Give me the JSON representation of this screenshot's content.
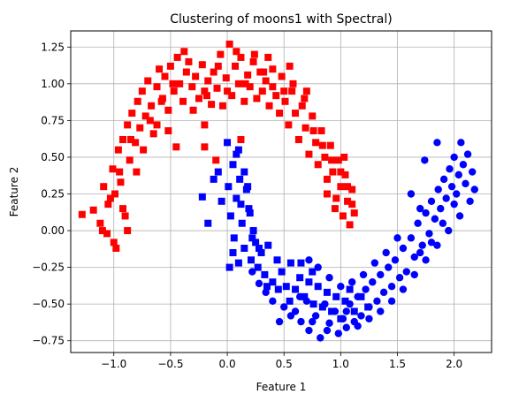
{
  "chart_data": {
    "type": "scatter",
    "title": "Clustering of moons1 with Spectral)",
    "xlabel": "Feature 1",
    "ylabel": "Feature 2",
    "xlim": [
      -1.38,
      2.33
    ],
    "ylim": [
      -0.83,
      1.36
    ],
    "xticks": [
      -1.0,
      -0.5,
      0.0,
      0.5,
      1.0,
      1.5,
      2.0
    ],
    "yticks": [
      -0.75,
      -0.5,
      -0.25,
      0.0,
      0.25,
      0.5,
      0.75,
      1.0,
      1.25
    ],
    "xtick_labels": [
      "−1.0",
      "−0.5",
      "0.0",
      "0.5",
      "1.0",
      "1.5",
      "2.0"
    ],
    "ytick_labels": [
      "−0.75",
      "−0.50",
      "−0.25",
      "0.00",
      "0.25",
      "0.50",
      "0.75",
      "1.00",
      "1.25"
    ],
    "grid": true,
    "series": [
      {
        "marker": "square",
        "color": "#ff0000",
        "points": [
          [
            -1.28,
            0.11
          ],
          [
            -1.18,
            0.14
          ],
          [
            -1.12,
            0.05
          ],
          [
            -1.09,
            0.3
          ],
          [
            -1.06,
            -0.02
          ],
          [
            -1.03,
            0.22
          ],
          [
            -1.01,
            0.42
          ],
          [
            -0.98,
            -0.12
          ],
          [
            -0.96,
            0.55
          ],
          [
            -0.94,
            0.33
          ],
          [
            -0.92,
            0.62
          ],
          [
            -0.9,
            0.1
          ],
          [
            -0.88,
            0.72
          ],
          [
            -0.86,
            0.48
          ],
          [
            -0.84,
            0.8
          ],
          [
            -0.81,
            0.6
          ],
          [
            -0.79,
            0.88
          ],
          [
            -0.77,
            0.7
          ],
          [
            -0.75,
            0.95
          ],
          [
            -0.72,
            0.78
          ],
          [
            -0.7,
            1.02
          ],
          [
            -0.67,
            0.85
          ],
          [
            -0.65,
            0.66
          ],
          [
            -0.62,
            0.98
          ],
          [
            -0.6,
            1.1
          ],
          [
            -0.57,
            0.9
          ],
          [
            -0.55,
            1.05
          ],
          [
            -0.52,
            0.82
          ],
          [
            -0.5,
            1.12
          ],
          [
            -0.47,
            0.95
          ],
          [
            -0.44,
            1.18
          ],
          [
            -0.42,
            1.0
          ],
          [
            -0.39,
            0.88
          ],
          [
            -0.36,
            1.08
          ],
          [
            -0.34,
            1.15
          ],
          [
            -0.31,
            0.98
          ],
          [
            -0.28,
            1.05
          ],
          [
            -0.25,
            0.9
          ],
          [
            -0.22,
            1.13
          ],
          [
            -0.2,
            0.95
          ],
          [
            -0.17,
            1.02
          ],
          [
            -0.14,
            0.86
          ],
          [
            -0.12,
            1.08
          ],
          [
            -0.09,
            0.97
          ],
          [
            -0.06,
            1.2
          ],
          [
            -0.04,
            0.85
          ],
          [
            -0.01,
            1.04
          ],
          [
            0.02,
            1.27
          ],
          [
            0.04,
            0.92
          ],
          [
            0.07,
            1.12
          ],
          [
            0.1,
            1.0
          ],
          [
            0.12,
            1.18
          ],
          [
            0.15,
            0.88
          ],
          [
            0.18,
            1.06
          ],
          [
            0.2,
            0.98
          ],
          [
            0.23,
            1.15
          ],
          [
            0.26,
            0.9
          ],
          [
            0.29,
            1.08
          ],
          [
            0.31,
            0.95
          ],
          [
            0.34,
            1.02
          ],
          [
            0.37,
            0.85
          ],
          [
            0.4,
            1.1
          ],
          [
            0.43,
            0.92
          ],
          [
            0.46,
            0.8
          ],
          [
            0.48,
            1.05
          ],
          [
            0.51,
            0.88
          ],
          [
            0.54,
            0.72
          ],
          [
            0.57,
            0.95
          ],
          [
            0.6,
            0.8
          ],
          [
            0.63,
            0.62
          ],
          [
            0.66,
            0.85
          ],
          [
            0.69,
            0.7
          ],
          [
            0.72,
            0.52
          ],
          [
            0.75,
            0.78
          ],
          [
            0.78,
            0.6
          ],
          [
            0.8,
            0.45
          ],
          [
            0.83,
            0.68
          ],
          [
            0.86,
            0.5
          ],
          [
            0.88,
            0.35
          ],
          [
            0.91,
            0.58
          ],
          [
            0.93,
            0.4
          ],
          [
            0.96,
            0.22
          ],
          [
            0.98,
            0.48
          ],
          [
            1.0,
            0.3
          ],
          [
            1.02,
            0.1
          ],
          [
            1.04,
            0.38
          ],
          [
            1.06,
            0.2
          ],
          [
            1.08,
            0.04
          ],
          [
            1.1,
            0.28
          ],
          [
            1.12,
            0.12
          ],
          [
            -1.05,
            0.18
          ],
          [
            -0.99,
            0.25
          ],
          [
            -0.95,
            0.4
          ],
          [
            -0.85,
            0.62
          ],
          [
            -0.8,
            0.4
          ],
          [
            -0.74,
            0.55
          ],
          [
            -0.68,
            0.75
          ],
          [
            -0.58,
            0.88
          ],
          [
            -0.48,
            1.0
          ],
          [
            -0.38,
            1.22
          ],
          [
            -0.3,
            0.82
          ],
          [
            -0.18,
            0.92
          ],
          [
            -0.08,
            1.12
          ],
          [
            0.0,
            0.95
          ],
          [
            0.08,
            1.22
          ],
          [
            0.16,
            1.0
          ],
          [
            0.24,
            1.2
          ],
          [
            0.32,
            1.08
          ],
          [
            0.4,
            0.98
          ],
          [
            0.5,
            0.95
          ],
          [
            0.58,
            1.0
          ],
          [
            0.68,
            0.9
          ],
          [
            0.76,
            0.68
          ],
          [
            0.84,
            0.58
          ],
          [
            0.92,
            0.48
          ],
          [
            1.0,
            0.4
          ],
          [
            1.06,
            0.3
          ],
          [
            1.1,
            0.18
          ],
          [
            -0.45,
            0.57
          ],
          [
            -0.2,
            0.57
          ],
          [
            -0.1,
            0.48
          ],
          [
            -0.2,
            0.72
          ],
          [
            0.12,
            0.62
          ],
          [
            -1.1,
            0.0
          ],
          [
            -1.0,
            -0.08
          ],
          [
            -0.88,
            0.0
          ],
          [
            -0.92,
            0.15
          ],
          [
            0.95,
            0.15
          ],
          [
            0.88,
            0.25
          ],
          [
            1.03,
            0.5
          ],
          [
            0.7,
            0.95
          ],
          [
            0.55,
            1.12
          ],
          [
            0.36,
            1.18
          ],
          [
            -0.62,
            0.72
          ],
          [
            -0.52,
            0.68
          ]
        ]
      },
      {
        "marker": "square",
        "color": "#0000ff",
        "points": [
          [
            -0.22,
            0.23
          ],
          [
            -0.17,
            0.05
          ],
          [
            -0.12,
            0.35
          ],
          [
            -0.08,
            0.4
          ],
          [
            -0.05,
            0.2
          ],
          [
            0.0,
            0.6
          ],
          [
            0.01,
            0.3
          ],
          [
            0.03,
            0.1
          ],
          [
            0.05,
            0.45
          ],
          [
            0.06,
            -0.05
          ],
          [
            0.08,
            0.22
          ],
          [
            0.1,
            0.55
          ],
          [
            0.11,
            0.35
          ],
          [
            0.13,
            0.05
          ],
          [
            0.15,
            -0.12
          ],
          [
            0.17,
            0.28
          ],
          [
            0.19,
            0.15
          ],
          [
            0.21,
            -0.2
          ],
          [
            0.23,
            0.0
          ],
          [
            0.25,
            -0.08
          ],
          [
            0.27,
            -0.25
          ],
          [
            0.3,
            -0.15
          ],
          [
            0.33,
            -0.3
          ],
          [
            0.36,
            -0.1
          ],
          [
            0.4,
            -0.35
          ],
          [
            0.44,
            -0.2
          ],
          [
            0.48,
            -0.28
          ],
          [
            0.52,
            -0.38
          ],
          [
            0.56,
            -0.22
          ],
          [
            0.6,
            -0.4
          ],
          [
            0.64,
            -0.32
          ],
          [
            0.68,
            -0.45
          ],
          [
            0.72,
            -0.35
          ],
          [
            0.76,
            -0.5
          ],
          [
            0.8,
            -0.38
          ],
          [
            0.84,
            -0.52
          ],
          [
            0.88,
            -0.42
          ],
          [
            0.92,
            -0.55
          ],
          [
            0.96,
            -0.45
          ],
          [
            1.0,
            -0.6
          ],
          [
            1.04,
            -0.48
          ],
          [
            1.08,
            -0.4
          ],
          [
            1.12,
            -0.55
          ],
          [
            1.18,
            -0.45
          ],
          [
            1.24,
            -0.52
          ],
          [
            0.1,
            -0.22
          ],
          [
            0.15,
            0.4
          ],
          [
            0.2,
            0.12
          ],
          [
            0.05,
            -0.15
          ],
          [
            0.02,
            -0.25
          ],
          [
            0.08,
            0.52
          ],
          [
            0.12,
            0.18
          ],
          [
            0.18,
            0.3
          ],
          [
            0.22,
            -0.05
          ],
          [
            0.28,
            -0.12
          ],
          [
            0.35,
            -0.38
          ],
          [
            0.45,
            -0.4
          ],
          [
            0.55,
            -0.48
          ],
          [
            0.65,
            -0.22
          ],
          [
            0.75,
            -0.28
          ]
        ]
      },
      {
        "marker": "circle",
        "color": "#0000ff",
        "points": [
          [
            0.6,
            -0.55
          ],
          [
            0.65,
            -0.62
          ],
          [
            0.7,
            -0.48
          ],
          [
            0.72,
            -0.68
          ],
          [
            0.78,
            -0.58
          ],
          [
            0.82,
            -0.73
          ],
          [
            0.86,
            -0.5
          ],
          [
            0.9,
            -0.63
          ],
          [
            0.95,
            -0.55
          ],
          [
            0.98,
            -0.7
          ],
          [
            1.02,
            -0.6
          ],
          [
            1.05,
            -0.66
          ],
          [
            1.08,
            -0.5
          ],
          [
            1.12,
            -0.62
          ],
          [
            1.15,
            -0.45
          ],
          [
            1.18,
            -0.58
          ],
          [
            1.22,
            -0.4
          ],
          [
            1.25,
            -0.52
          ],
          [
            1.28,
            -0.35
          ],
          [
            1.32,
            -0.48
          ],
          [
            1.35,
            -0.3
          ],
          [
            1.38,
            -0.42
          ],
          [
            1.42,
            -0.25
          ],
          [
            1.45,
            -0.38
          ],
          [
            1.48,
            -0.2
          ],
          [
            1.52,
            -0.32
          ],
          [
            1.55,
            -0.12
          ],
          [
            1.58,
            -0.28
          ],
          [
            1.62,
            -0.05
          ],
          [
            1.65,
            -0.18
          ],
          [
            1.68,
            0.05
          ],
          [
            1.72,
            -0.1
          ],
          [
            1.75,
            0.12
          ],
          [
            1.78,
            -0.02
          ],
          [
            1.8,
            0.2
          ],
          [
            1.83,
            0.08
          ],
          [
            1.86,
            0.28
          ],
          [
            1.88,
            0.15
          ],
          [
            1.91,
            0.35
          ],
          [
            1.93,
            0.22
          ],
          [
            1.96,
            0.42
          ],
          [
            1.98,
            0.3
          ],
          [
            2.0,
            0.5
          ],
          [
            2.02,
            0.25
          ],
          [
            2.04,
            0.38
          ],
          [
            2.06,
            0.6
          ],
          [
            2.08,
            0.45
          ],
          [
            2.1,
            0.32
          ],
          [
            2.12,
            0.52
          ],
          [
            2.14,
            0.2
          ],
          [
            2.16,
            0.4
          ],
          [
            2.18,
            0.28
          ],
          [
            1.85,
            0.6
          ],
          [
            1.62,
            0.25
          ],
          [
            1.7,
            0.15
          ],
          [
            1.74,
            0.48
          ],
          [
            1.5,
            -0.05
          ],
          [
            1.4,
            -0.15
          ],
          [
            1.3,
            -0.22
          ],
          [
            1.2,
            -0.3
          ],
          [
            1.1,
            -0.35
          ],
          [
            1.0,
            -0.38
          ],
          [
            0.9,
            -0.32
          ],
          [
            0.8,
            -0.25
          ],
          [
            0.72,
            -0.2
          ],
          [
            0.64,
            -0.45
          ],
          [
            0.56,
            -0.58
          ],
          [
            0.5,
            -0.52
          ],
          [
            0.46,
            -0.62
          ],
          [
            0.4,
            -0.48
          ],
          [
            0.34,
            -0.42
          ],
          [
            0.28,
            -0.36
          ],
          [
            0.22,
            -0.28
          ],
          [
            0.75,
            -0.62
          ],
          [
            0.88,
            -0.68
          ],
          [
            1.05,
            -0.55
          ],
          [
            1.15,
            -0.65
          ],
          [
            1.25,
            -0.6
          ],
          [
            1.35,
            -0.55
          ],
          [
            1.45,
            -0.48
          ],
          [
            1.55,
            -0.4
          ],
          [
            1.65,
            -0.3
          ],
          [
            1.75,
            -0.2
          ],
          [
            1.85,
            -0.1
          ],
          [
            1.95,
            0.0
          ],
          [
            2.05,
            0.1
          ],
          [
            1.9,
            0.05
          ],
          [
            2.0,
            0.18
          ],
          [
            1.8,
            -0.08
          ],
          [
            1.7,
            -0.15
          ]
        ]
      }
    ]
  }
}
